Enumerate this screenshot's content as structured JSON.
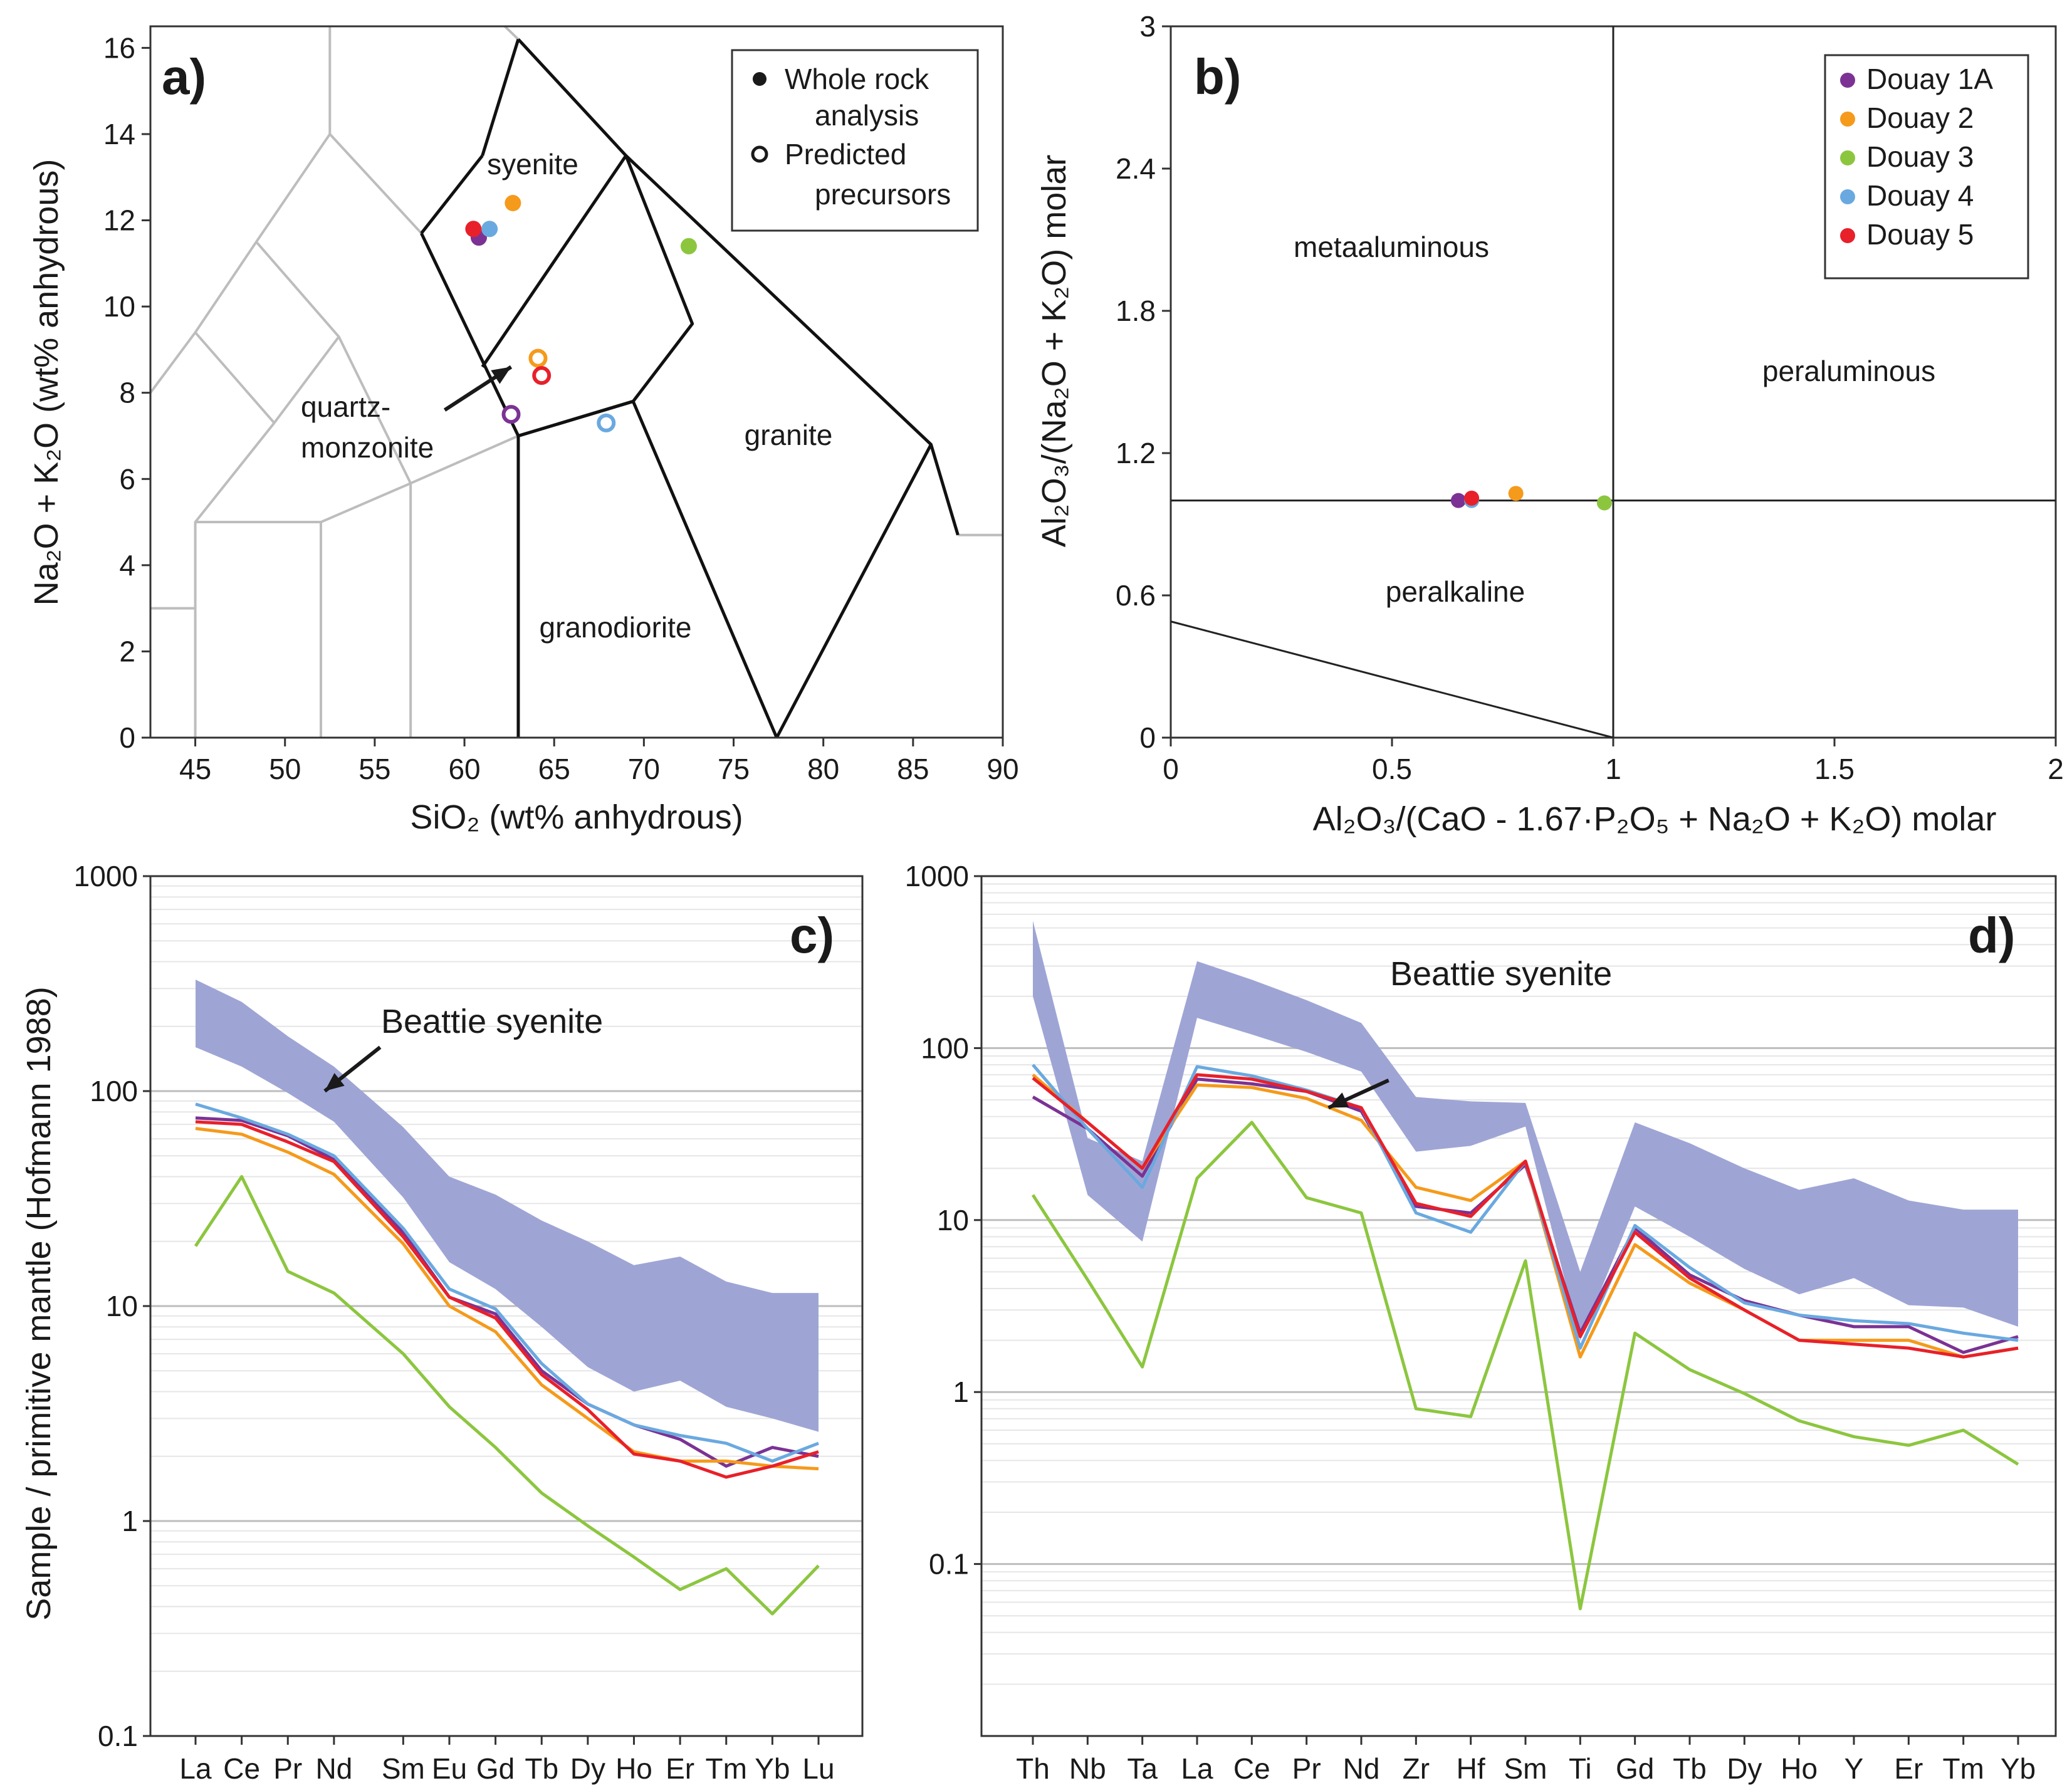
{
  "colors": {
    "douay_1a": "#7b3294",
    "douay_2": "#f59a1b",
    "douay_3": "#8cc63f",
    "douay_4": "#6aa9e0",
    "douay_5": "#e8202a",
    "beattie_band": "#9ea5d5",
    "field_grey": "#bdbdbd"
  },
  "chart_data": [
    {
      "type": "scatter",
      "panel_label": "a)",
      "xlabel": "SiO₂ (wt% anhydrous)",
      "ylabel": "Na₂O + K₂O (wt% anhydrous)",
      "xlim": [
        42.5,
        90
      ],
      "ylim": [
        0,
        16.5
      ],
      "x_ticks": [
        "45",
        "50",
        "55",
        "60",
        "65",
        "70",
        "75",
        "80",
        "85",
        "90"
      ],
      "y_ticks": [
        "0",
        "2",
        "4",
        "6",
        "8",
        "10",
        "12",
        "14",
        "16"
      ],
      "legend": {
        "whole_rock": "Whole rock",
        "whole_rock_2": "analysis",
        "predicted": "Predicted",
        "predicted_2": "precursors"
      },
      "field_labels": {
        "syenite": "syenite",
        "qm_1": "quartz-",
        "qm_2": "monzonite",
        "granite": "granite",
        "granodiorite": "granodiorite"
      },
      "grey_fields": [
        [
          [
            42.5,
            8
          ],
          [
            45,
            9.4
          ],
          [
            48.4,
            11.5
          ],
          [
            52.5,
            14
          ],
          [
            57.6,
            11.7
          ]
        ],
        [
          [
            45,
            9.4
          ],
          [
            49.4,
            7.3
          ],
          [
            53,
            9.3
          ],
          [
            57,
            5.9
          ],
          [
            63,
            7
          ]
        ],
        [
          [
            49.4,
            7.3
          ],
          [
            45,
            5
          ],
          [
            52,
            5
          ],
          [
            57,
            5.9
          ]
        ],
        [
          [
            48.4,
            11.5
          ],
          [
            53,
            9.3
          ]
        ],
        [
          [
            52.5,
            14
          ],
          [
            52.5,
            18
          ]
        ],
        [
          [
            45,
            5
          ],
          [
            45,
            0
          ]
        ],
        [
          [
            52,
            5
          ],
          [
            52,
            0
          ]
        ],
        [
          [
            57,
            5.9
          ],
          [
            57,
            0
          ]
        ],
        [
          [
            42.5,
            3
          ],
          [
            45,
            3
          ]
        ],
        [
          [
            87.5,
            4.7
          ],
          [
            90,
            4.7
          ]
        ],
        [
          [
            52.5,
            18
          ],
          [
            61,
            17
          ],
          [
            63,
            16.2
          ]
        ]
      ],
      "black_fields": [
        [
          [
            63,
            16.2
          ],
          [
            69,
            13.5
          ],
          [
            72.7,
            9.6
          ],
          [
            69.4,
            7.8
          ],
          [
            63,
            7
          ]
        ],
        [
          [
            61,
            13.5
          ],
          [
            63,
            16.2
          ]
        ],
        [
          [
            57.6,
            11.7
          ],
          [
            61,
            13.5
          ]
        ],
        [
          [
            57.6,
            11.7
          ],
          [
            63,
            7
          ]
        ],
        [
          [
            63,
            7
          ],
          [
            63,
            0
          ]
        ],
        [
          [
            63,
            7
          ],
          [
            69.4,
            7.8
          ],
          [
            77.4,
            0
          ],
          [
            86,
            6.8
          ],
          [
            87.5,
            4.7
          ]
        ],
        [
          [
            69,
            13.5
          ],
          [
            86,
            6.8
          ]
        ],
        [
          [
            69,
            13.5
          ],
          [
            61,
            8.6
          ]
        ]
      ],
      "arrow": [
        [
          58.9,
          7.6
        ],
        [
          62.6,
          8.6
        ]
      ],
      "whole_rock_points": [
        {
          "sample": "Douay 1A",
          "x": 60.8,
          "y": 11.6
        },
        {
          "sample": "Douay 2",
          "x": 62.7,
          "y": 12.4
        },
        {
          "sample": "Douay 3",
          "x": 72.5,
          "y": 11.4
        },
        {
          "sample": "Douay 4",
          "x": 61.4,
          "y": 11.8
        },
        {
          "sample": "Douay 5",
          "x": 60.5,
          "y": 11.8
        }
      ],
      "predicted_points": [
        {
          "sample": "Douay 1A",
          "x": 62.6,
          "y": 7.5
        },
        {
          "sample": "Douay 2",
          "x": 64.1,
          "y": 8.8
        },
        {
          "sample": "Douay 4",
          "x": 67.9,
          "y": 7.3
        },
        {
          "sample": "Douay 5",
          "x": 64.3,
          "y": 8.4
        }
      ]
    },
    {
      "type": "scatter",
      "panel_label": "b)",
      "xlabel": "Al₂O₃/(CaO - 1.67·P₂O₅ + Na₂O + K₂O) molar",
      "ylabel": "Al₂O₃/(Na₂O + K₂O) molar",
      "xlim": [
        0,
        2
      ],
      "ylim": [
        0,
        3
      ],
      "x_ticks": [
        "0",
        "0.5",
        "1",
        "1.5",
        "2"
      ],
      "y_ticks": [
        "0",
        "0.6",
        "1.2",
        "1.8",
        "2.4",
        "3"
      ],
      "field_labels": {
        "metaaluminous": "metaaluminous",
        "peraluminous": "peraluminous",
        "peralkaline": "peralkaline"
      },
      "boundaries": [
        [
          [
            0,
            1
          ],
          [
            2,
            1
          ]
        ],
        [
          [
            1,
            0
          ],
          [
            1,
            3
          ]
        ],
        [
          [
            0,
            0.49
          ],
          [
            1,
            0
          ]
        ]
      ],
      "series": [
        {
          "name": "Douay 1A",
          "x": 0.65,
          "y": 1.0
        },
        {
          "name": "Douay 2",
          "x": 0.78,
          "y": 1.03
        },
        {
          "name": "Douay 3",
          "x": 0.98,
          "y": 0.99
        },
        {
          "name": "Douay 4",
          "x": 0.68,
          "y": 1.0
        },
        {
          "name": "Douay 5",
          "x": 0.68,
          "y": 1.01
        }
      ]
    },
    {
      "type": "line",
      "panel_label": "c)",
      "ylabel": "Sample / primitive mantle (Hofmann 1988)",
      "y_scale": "log",
      "ylim": [
        0.1,
        1000
      ],
      "y_ticks": [
        "0.1",
        "1",
        "10",
        "100",
        "1000"
      ],
      "categories": [
        "La",
        "Ce",
        "Pr",
        "Nd",
        "Sm",
        "Eu",
        "Gd",
        "Tb",
        "Dy",
        "Ho",
        "Er",
        "Tm",
        "Yb",
        "Lu"
      ],
      "x_positions": [
        0,
        1,
        2,
        3,
        4.5,
        5.5,
        6.5,
        7.5,
        8.5,
        9.5,
        10.5,
        11.5,
        12.5,
        13.5
      ],
      "band_label": "Beattie syenite",
      "arrow_from": [
        4,
        160
      ],
      "arrow_to": [
        2.8,
        100
      ],
      "beattie_upper": [
        330,
        260,
        180,
        130,
        68,
        40,
        33,
        25,
        20,
        15.5,
        17,
        13,
        11.5,
        11.5
      ],
      "beattie_lower": [
        160,
        130,
        98,
        72,
        32,
        16,
        12,
        8,
        5.2,
        4,
        4.5,
        3.4,
        3,
        2.6
      ],
      "series": [
        {
          "name": "Douay 1A",
          "values": [
            75,
            73,
            62,
            48,
            22,
            11,
            9.2,
            5,
            3.5,
            2.8,
            2.4,
            1.8,
            2.2,
            2.0
          ]
        },
        {
          "name": "Douay 2",
          "values": [
            67,
            63,
            52,
            41,
            19.5,
            10,
            7.6,
            4.3,
            3.0,
            2.1,
            1.9,
            1.9,
            1.8,
            1.75
          ]
        },
        {
          "name": "Douay 3",
          "values": [
            19,
            40,
            14.5,
            11.5,
            6,
            3.4,
            2.2,
            1.35,
            0.95,
            0.68,
            0.48,
            0.6,
            0.37,
            0.62
          ]
        },
        {
          "name": "Douay 4",
          "values": [
            87,
            75,
            63,
            50,
            23,
            12,
            9.7,
            5.4,
            3.5,
            2.8,
            2.5,
            2.3,
            1.9,
            2.3
          ]
        },
        {
          "name": "Douay 5",
          "values": [
            72,
            70,
            58,
            47,
            21,
            11,
            8.8,
            4.8,
            3.3,
            2.05,
            1.9,
            1.6,
            1.8,
            2.1
          ]
        }
      ]
    },
    {
      "type": "line",
      "panel_label": "d)",
      "y_scale": "log",
      "ylim": [
        0.01,
        1000
      ],
      "y_ticks": [
        "0.1",
        "1",
        "10",
        "100",
        "1000"
      ],
      "categories": [
        "Th",
        "Nb",
        "Ta",
        "La",
        "Ce",
        "Pr",
        "Nd",
        "Zr",
        "Hf",
        "Sm",
        "Ti",
        "Gd",
        "Tb",
        "Dy",
        "Ho",
        "Y",
        "Er",
        "Tm",
        "Yb"
      ],
      "x_positions": [
        0,
        1,
        2,
        3,
        4,
        5,
        6,
        7,
        8,
        9,
        10,
        11,
        12,
        13,
        14,
        15,
        16,
        17,
        18
      ],
      "band_label": "Beattie syenite",
      "arrow_from": [
        6.5,
        65
      ],
      "arrow_to": [
        5.4,
        45
      ],
      "beattie_upper": [
        550,
        30,
        22,
        320,
        250,
        190,
        140,
        52,
        49,
        48,
        5,
        37,
        28,
        20,
        15,
        17.5,
        13,
        11.5,
        11.5
      ],
      "beattie_lower": [
        200,
        14,
        7.5,
        150,
        120,
        95,
        73,
        25,
        27,
        35,
        2,
        12,
        8,
        5.2,
        3.7,
        4.6,
        3.2,
        3.1,
        2.4
      ],
      "series": [
        {
          "name": "Douay 1A",
          "values": [
            52,
            34,
            18,
            66,
            62,
            56,
            43,
            12,
            11,
            21,
            2.2,
            9,
            4.8,
            3.4,
            2.8,
            2.4,
            2.4,
            1.7,
            2.1
          ]
        },
        {
          "name": "Douay 2",
          "values": [
            70,
            37,
            20,
            61,
            59,
            51,
            38,
            15.5,
            13,
            22,
            1.6,
            7.2,
            4.3,
            3,
            2,
            2,
            2,
            1.6,
            1.8
          ]
        },
        {
          "name": "Douay 3",
          "values": [
            14,
            4.5,
            1.4,
            17.5,
            37,
            13.5,
            11,
            0.8,
            0.72,
            5.8,
            0.055,
            2.2,
            1.35,
            0.98,
            0.68,
            0.55,
            0.49,
            0.6,
            0.38
          ]
        },
        {
          "name": "Douay 4",
          "values": [
            80,
            34,
            15.5,
            78,
            69,
            57,
            45,
            11,
            8.5,
            22,
            1.8,
            9.3,
            5.3,
            3.3,
            2.8,
            2.6,
            2.5,
            2.2,
            2
          ]
        },
        {
          "name": "Douay 5",
          "values": [
            67,
            37,
            20,
            70,
            66,
            56,
            45,
            12.5,
            10.5,
            22,
            2.1,
            8.5,
            4.6,
            3,
            2,
            1.9,
            1.8,
            1.6,
            1.8
          ]
        }
      ]
    }
  ]
}
